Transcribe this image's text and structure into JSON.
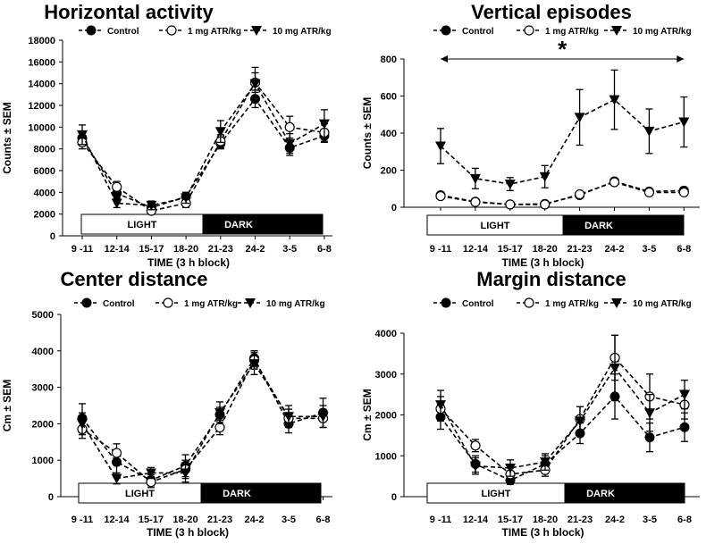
{
  "legend": [
    "Control",
    "1 mg ATR/kg",
    "10 mg ATR/kg"
  ],
  "phases": [
    "LIGHT",
    "DARK"
  ],
  "significance": "*",
  "chart_data": [
    {
      "type": "line",
      "title": "Horizontal activity",
      "xlabel": "TIME  (3 h block)",
      "ylabel": "Counts ± SEM",
      "categories": [
        "9 -11",
        "12-14",
        "15-17",
        "18-20",
        "21-23",
        "24-2",
        "3-5",
        "6-8"
      ],
      "ylim": [
        0,
        18000
      ],
      "yticks": [
        0,
        2000,
        4000,
        6000,
        8000,
        10000,
        12000,
        14000,
        16000,
        18000
      ],
      "series": [
        {
          "name": "Control",
          "values": [
            9000,
            3900,
            2600,
            3600,
            8500,
            12600,
            8100,
            9200
          ],
          "sem": [
            600,
            400,
            300,
            400,
            500,
            800,
            700,
            600
          ]
        },
        {
          "name": "1 mg ATR/kg",
          "values": [
            8600,
            4500,
            2300,
            3000,
            8700,
            14100,
            10000,
            9500
          ],
          "sem": [
            600,
            500,
            300,
            400,
            600,
            900,
            1000,
            800
          ]
        },
        {
          "name": "10 mg ATR/kg",
          "values": [
            9300,
            3000,
            2800,
            3500,
            9600,
            14000,
            8500,
            10300
          ],
          "sem": [
            900,
            400,
            400,
            500,
            1000,
            1500,
            900,
            1300
          ]
        }
      ]
    },
    {
      "type": "line",
      "title": "Vertical episodes",
      "xlabel": "TIME  (3 h block)",
      "ylabel": "Counts ± SEM",
      "categories": [
        "9 -11",
        "12-14",
        "15-17",
        "18-20",
        "21-23",
        "24-2",
        "3-5",
        "6-8"
      ],
      "ylim": [
        0,
        800
      ],
      "yticks": [
        0,
        200,
        400,
        600,
        800
      ],
      "series": [
        {
          "name": "Control",
          "values": [
            65,
            30,
            15,
            18,
            65,
            140,
            85,
            90
          ],
          "sem": [
            10,
            8,
            5,
            5,
            10,
            15,
            10,
            12
          ]
        },
        {
          "name": "1 mg ATR/kg",
          "values": [
            60,
            28,
            15,
            15,
            70,
            135,
            80,
            80
          ],
          "sem": [
            10,
            8,
            5,
            5,
            10,
            15,
            10,
            10
          ]
        },
        {
          "name": "10 mg ATR/kg",
          "values": [
            330,
            155,
            125,
            165,
            485,
            580,
            410,
            460
          ],
          "sem": [
            95,
            55,
            35,
            60,
            150,
            160,
            120,
            135
          ]
        }
      ]
    },
    {
      "type": "line",
      "title": "Center distance",
      "xlabel": "TIME  (3 h block)",
      "ylabel": "Cm ± SEM",
      "categories": [
        "9 -11",
        "12-14",
        "15-17",
        "18-20",
        "21-23",
        "24-2",
        "3-5",
        "6-8"
      ],
      "ylim": [
        0,
        5000
      ],
      "yticks": [
        0,
        1000,
        2000,
        3000,
        4000,
        5000
      ],
      "series": [
        {
          "name": "Control",
          "values": [
            2150,
            950,
            450,
            850,
            2250,
            3800,
            2000,
            2300
          ],
          "sem": [
            400,
            300,
            150,
            300,
            200,
            200,
            250,
            400
          ]
        },
        {
          "name": "1 mg ATR/kg",
          "values": [
            1850,
            1200,
            400,
            750,
            1900,
            3750,
            2150,
            2150
          ],
          "sem": [
            250,
            250,
            150,
            250,
            200,
            250,
            250,
            250
          ]
        },
        {
          "name": "10 mg ATR/kg",
          "values": [
            2000,
            500,
            650,
            650,
            2300,
            3650,
            2200,
            2200
          ],
          "sem": [
            300,
            150,
            150,
            250,
            300,
            300,
            300,
            300
          ]
        }
      ]
    },
    {
      "type": "line",
      "title": "Margin distance",
      "xlabel": "TIME  (3 h block)",
      "ylabel": "Cm ± SEM",
      "categories": [
        "9 -11",
        "12-14",
        "15-17",
        "18-20",
        "21-23",
        "24-2",
        "3-5",
        "6-8"
      ],
      "ylim": [
        0,
        4000
      ],
      "yticks": [
        0,
        1000,
        2000,
        3000,
        4000
      ],
      "series": [
        {
          "name": "Control",
          "values": [
            1950,
            800,
            400,
            800,
            1550,
            2450,
            1450,
            1700
          ],
          "sem": [
            300,
            200,
            100,
            200,
            250,
            550,
            350,
            350
          ]
        },
        {
          "name": "1 mg ATR/kg",
          "values": [
            2150,
            1250,
            550,
            650,
            1900,
            3400,
            2450,
            2250
          ],
          "sem": [
            300,
            150,
            150,
            150,
            300,
            550,
            550,
            350
          ]
        },
        {
          "name": "10 mg ATR/kg",
          "values": [
            2250,
            750,
            700,
            850,
            1850,
            3150,
            2050,
            2500
          ],
          "sem": [
            350,
            200,
            200,
            200,
            350,
            800,
            450,
            350
          ]
        }
      ]
    }
  ]
}
